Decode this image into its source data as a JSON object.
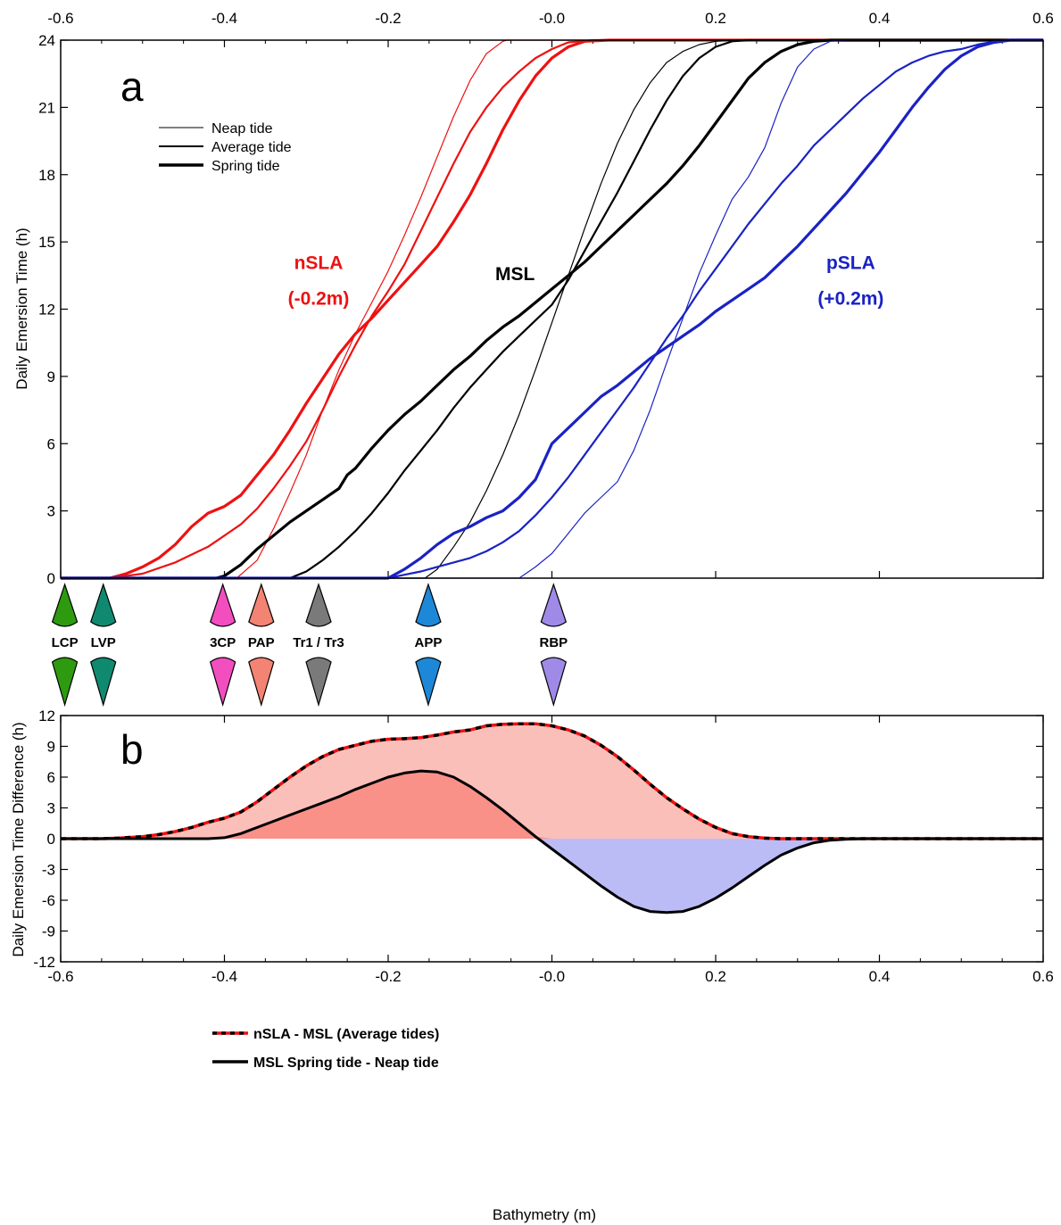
{
  "colors": {
    "nSLA": "#ee1111",
    "MSL": "#000000",
    "pSLA": "#1a22c4",
    "fill_pos_light": "#fbbfb9",
    "fill_pos_dark": "#f99189",
    "fill_neg": "#bbbcf6"
  },
  "chart_data": [
    {
      "id": "a",
      "type": "line",
      "panel_label": "a",
      "ylabel": "Daily Emersion Time (h)",
      "xlabel": "",
      "xlim": [
        -0.6,
        0.6
      ],
      "ylim": [
        0,
        24
      ],
      "x_ticks": [
        "-0.6",
        "-0.4",
        "-0.2",
        "-0.0",
        "0.2",
        "0.4",
        "0.6"
      ],
      "y_ticks": [
        "0",
        "3",
        "6",
        "9",
        "12",
        "15",
        "18",
        "21",
        "24"
      ],
      "legend": [
        "Neap tide",
        "Average tide",
        "Spring tide"
      ],
      "annotations": [
        {
          "text": "nSLA",
          "color": "#ee1111",
          "x": -0.285,
          "y": 13.8
        },
        {
          "text": "(-0.2m)",
          "color": "#ee1111",
          "x": -0.285,
          "y": 12.2
        },
        {
          "text": "MSL",
          "color": "#000000",
          "x": -0.045,
          "y": 13.3
        },
        {
          "text": "pSLA",
          "color": "#1a22c4",
          "x": 0.365,
          "y": 13.8
        },
        {
          "text": "(+0.2m)",
          "color": "#1a22c4",
          "x": 0.365,
          "y": 12.2
        }
      ],
      "series": [
        {
          "group": "nSLA",
          "tide": "Neap",
          "color": "#ee1111",
          "width": 1.2,
          "x": [
            -0.6,
            -0.385,
            -0.36,
            -0.34,
            -0.32,
            -0.3,
            -0.28,
            -0.26,
            -0.24,
            -0.22,
            -0.2,
            -0.18,
            -0.16,
            -0.14,
            -0.12,
            -0.1,
            -0.08,
            -0.06,
            -0.055,
            0.6
          ],
          "y": [
            0,
            0,
            0.8,
            2.2,
            3.8,
            5.5,
            7.5,
            9.3,
            10.9,
            12.3,
            13.7,
            15.3,
            17.0,
            18.8,
            20.6,
            22.2,
            23.4,
            23.95,
            24,
            24
          ]
        },
        {
          "group": "nSLA",
          "tide": "Average",
          "color": "#ee1111",
          "width": 2.2,
          "x": [
            -0.6,
            -0.54,
            -0.5,
            -0.46,
            -0.42,
            -0.4,
            -0.38,
            -0.36,
            -0.34,
            -0.32,
            -0.3,
            -0.28,
            -0.26,
            -0.24,
            -0.22,
            -0.2,
            -0.18,
            -0.16,
            -0.14,
            -0.12,
            -0.1,
            -0.08,
            -0.06,
            -0.04,
            -0.02,
            0.0,
            0.02,
            0.05,
            0.6
          ],
          "y": [
            0,
            0,
            0.2,
            0.7,
            1.4,
            1.9,
            2.4,
            3.1,
            4.0,
            5.0,
            6.1,
            7.5,
            9.0,
            10.4,
            11.7,
            12.8,
            14.0,
            15.5,
            17.0,
            18.5,
            19.9,
            21.0,
            21.9,
            22.6,
            23.2,
            23.6,
            23.9,
            24,
            24
          ]
        },
        {
          "group": "nSLA",
          "tide": "Spring",
          "color": "#ee1111",
          "width": 3.2,
          "x": [
            -0.6,
            -0.54,
            -0.52,
            -0.5,
            -0.48,
            -0.46,
            -0.44,
            -0.42,
            -0.4,
            -0.38,
            -0.36,
            -0.34,
            -0.32,
            -0.3,
            -0.28,
            -0.26,
            -0.24,
            -0.22,
            -0.2,
            -0.18,
            -0.16,
            -0.14,
            -0.12,
            -0.1,
            -0.08,
            -0.06,
            -0.04,
            -0.02,
            0.0,
            0.02,
            0.04,
            0.07,
            0.6
          ],
          "y": [
            0,
            0,
            0.2,
            0.5,
            0.9,
            1.5,
            2.3,
            2.9,
            3.2,
            3.7,
            4.6,
            5.5,
            6.6,
            7.8,
            8.9,
            10.0,
            10.9,
            11.6,
            12.4,
            13.2,
            14.0,
            14.8,
            15.9,
            17.1,
            18.5,
            20.0,
            21.3,
            22.4,
            23.2,
            23.7,
            23.95,
            24,
            24
          ]
        },
        {
          "group": "MSL",
          "tide": "Neap",
          "color": "#000000",
          "width": 1.2,
          "x": [
            -0.6,
            -0.155,
            -0.14,
            -0.12,
            -0.1,
            -0.08,
            -0.06,
            -0.04,
            -0.02,
            0.0,
            0.02,
            0.04,
            0.06,
            0.08,
            0.1,
            0.12,
            0.14,
            0.16,
            0.18,
            0.2,
            0.22,
            0.25,
            0.6
          ],
          "y": [
            0,
            0,
            0.4,
            1.4,
            2.5,
            3.9,
            5.5,
            7.3,
            9.3,
            11.4,
            13.5,
            15.6,
            17.6,
            19.4,
            20.9,
            22.1,
            23.0,
            23.5,
            23.8,
            23.95,
            24,
            24,
            24
          ]
        },
        {
          "group": "MSL",
          "tide": "Average",
          "color": "#000000",
          "width": 2.2,
          "x": [
            -0.6,
            -0.32,
            -0.3,
            -0.28,
            -0.26,
            -0.24,
            -0.22,
            -0.2,
            -0.18,
            -0.16,
            -0.14,
            -0.12,
            -0.1,
            -0.08,
            -0.06,
            -0.04,
            -0.02,
            0.0,
            0.02,
            0.04,
            0.06,
            0.08,
            0.1,
            0.12,
            0.14,
            0.16,
            0.18,
            0.2,
            0.22,
            0.24,
            0.26,
            0.28,
            0.6
          ],
          "y": [
            0,
            0,
            0.3,
            0.8,
            1.4,
            2.1,
            2.9,
            3.8,
            4.8,
            5.7,
            6.6,
            7.6,
            8.5,
            9.3,
            10.1,
            10.8,
            11.5,
            12.2,
            13.3,
            14.6,
            15.9,
            17.2,
            18.6,
            20.0,
            21.3,
            22.4,
            23.2,
            23.7,
            23.95,
            24,
            24,
            24,
            24
          ]
        },
        {
          "group": "MSL",
          "tide": "Spring",
          "color": "#000000",
          "width": 3.2,
          "x": [
            -0.6,
            -0.41,
            -0.4,
            -0.38,
            -0.36,
            -0.34,
            -0.32,
            -0.3,
            -0.28,
            -0.26,
            -0.25,
            -0.24,
            -0.22,
            -0.2,
            -0.18,
            -0.16,
            -0.14,
            -0.12,
            -0.1,
            -0.08,
            -0.06,
            -0.04,
            -0.02,
            0.0,
            0.02,
            0.04,
            0.06,
            0.08,
            0.1,
            0.12,
            0.14,
            0.16,
            0.18,
            0.2,
            0.22,
            0.24,
            0.26,
            0.28,
            0.3,
            0.32,
            0.34,
            0.36,
            0.6
          ],
          "y": [
            0,
            0,
            0.1,
            0.6,
            1.3,
            1.9,
            2.5,
            3.0,
            3.5,
            4.0,
            4.6,
            4.9,
            5.8,
            6.6,
            7.3,
            7.9,
            8.6,
            9.3,
            9.9,
            10.6,
            11.2,
            11.7,
            12.3,
            12.9,
            13.5,
            14.1,
            14.8,
            15.5,
            16.2,
            16.9,
            17.6,
            18.4,
            19.3,
            20.3,
            21.3,
            22.3,
            23.0,
            23.5,
            23.8,
            23.95,
            24,
            24,
            24
          ]
        },
        {
          "group": "pSLA",
          "tide": "Neap",
          "color": "#1a22c4",
          "width": 1.2,
          "x": [
            -0.6,
            -0.04,
            -0.02,
            0.0,
            0.02,
            0.04,
            0.06,
            0.08,
            0.1,
            0.12,
            0.14,
            0.16,
            0.18,
            0.2,
            0.22,
            0.24,
            0.26,
            0.28,
            0.3,
            0.32,
            0.34,
            0.36,
            0.6
          ],
          "y": [
            0,
            0,
            0.5,
            1.1,
            2.0,
            2.9,
            3.6,
            4.3,
            5.7,
            7.5,
            9.6,
            11.6,
            13.6,
            15.3,
            16.9,
            17.9,
            19.2,
            21.2,
            22.8,
            23.6,
            23.95,
            24,
            24
          ]
        },
        {
          "group": "pSLA",
          "tide": "Average",
          "color": "#1a22c4",
          "width": 2.2,
          "x": [
            -0.6,
            -0.2,
            -0.18,
            -0.16,
            -0.14,
            -0.12,
            -0.1,
            -0.08,
            -0.06,
            -0.04,
            -0.02,
            0.0,
            0.02,
            0.04,
            0.06,
            0.08,
            0.1,
            0.12,
            0.14,
            0.16,
            0.18,
            0.2,
            0.22,
            0.24,
            0.26,
            0.28,
            0.3,
            0.32,
            0.34,
            0.36,
            0.38,
            0.4,
            0.42,
            0.44,
            0.46,
            0.48,
            0.5,
            0.52,
            0.55,
            0.6
          ],
          "y": [
            0,
            0,
            0.15,
            0.3,
            0.5,
            0.7,
            0.9,
            1.2,
            1.6,
            2.1,
            2.8,
            3.6,
            4.5,
            5.5,
            6.5,
            7.5,
            8.5,
            9.6,
            10.7,
            11.7,
            12.8,
            13.8,
            14.8,
            15.8,
            16.7,
            17.6,
            18.4,
            19.3,
            20.0,
            20.7,
            21.4,
            22.0,
            22.6,
            23.0,
            23.3,
            23.5,
            23.6,
            23.8,
            24,
            24
          ]
        },
        {
          "group": "pSLA",
          "tide": "Spring",
          "color": "#1a22c4",
          "width": 3.2,
          "x": [
            -0.6,
            -0.2,
            -0.18,
            -0.16,
            -0.14,
            -0.12,
            -0.1,
            -0.08,
            -0.06,
            -0.04,
            -0.02,
            0.0,
            0.02,
            0.04,
            0.06,
            0.08,
            0.1,
            0.12,
            0.14,
            0.16,
            0.18,
            0.2,
            0.22,
            0.24,
            0.26,
            0.28,
            0.3,
            0.32,
            0.34,
            0.36,
            0.38,
            0.4,
            0.42,
            0.44,
            0.46,
            0.48,
            0.5,
            0.52,
            0.54,
            0.56,
            0.6
          ],
          "y": [
            0,
            0,
            0.4,
            0.9,
            1.5,
            2.0,
            2.3,
            2.7,
            3.0,
            3.6,
            4.4,
            6.0,
            6.7,
            7.4,
            8.1,
            8.6,
            9.2,
            9.8,
            10.3,
            10.8,
            11.3,
            11.9,
            12.4,
            12.9,
            13.4,
            14.1,
            14.8,
            15.6,
            16.4,
            17.2,
            18.1,
            19.0,
            20.0,
            21.0,
            21.9,
            22.7,
            23.3,
            23.7,
            23.9,
            24,
            24
          ]
        }
      ]
    },
    {
      "id": "markers",
      "type": "scatter",
      "description_labels": [
        "LCP",
        "LVP",
        "3CP",
        "PAP",
        "Tr1 / Tr3",
        "APP",
        "RBP"
      ],
      "points": [
        {
          "label": "LCP",
          "x": -0.595,
          "color": "#2e9a10"
        },
        {
          "label": "LVP",
          "x": -0.548,
          "color": "#0f8a70"
        },
        {
          "label": "3CP",
          "x": -0.402,
          "color": "#f24ec0"
        },
        {
          "label": "PAP",
          "x": -0.355,
          "color": "#f38372"
        },
        {
          "label": "Tr1 / Tr3",
          "x": -0.285,
          "color": "#7a7a7a"
        },
        {
          "label": "APP",
          "x": -0.151,
          "color": "#1e88d8"
        },
        {
          "label": "RBP",
          "x": 0.002,
          "color": "#a08ae8"
        }
      ]
    },
    {
      "id": "b",
      "type": "area",
      "panel_label": "b",
      "ylabel": "Daily Emersion Time Difference (h)",
      "xlabel": "Bathymetry (m)",
      "xlim": [
        -0.6,
        0.6
      ],
      "ylim": [
        -12,
        12
      ],
      "x_ticks": [
        "-0.6",
        "-0.4",
        "-0.2",
        "-0.0",
        "0.2",
        "0.4",
        "0.6"
      ],
      "y_ticks": [
        "-12",
        "-9",
        "-6",
        "-3",
        "0",
        "3",
        "6",
        "9",
        "12"
      ],
      "legend": [
        "nSLA - MSL (Average tides)",
        "MSL Spring tide - Neap tide"
      ],
      "series": [
        {
          "name": "nSLA - MSL (Average tides)",
          "x": [
            -0.6,
            -0.55,
            -0.53,
            -0.5,
            -0.48,
            -0.46,
            -0.44,
            -0.42,
            -0.4,
            -0.38,
            -0.36,
            -0.34,
            -0.32,
            -0.3,
            -0.28,
            -0.26,
            -0.24,
            -0.22,
            -0.2,
            -0.18,
            -0.16,
            -0.14,
            -0.12,
            -0.1,
            -0.08,
            -0.06,
            -0.04,
            -0.02,
            0.0,
            0.02,
            0.04,
            0.06,
            0.08,
            0.1,
            0.12,
            0.14,
            0.16,
            0.18,
            0.2,
            0.22,
            0.24,
            0.26,
            0.28,
            0.3,
            0.32,
            0.35,
            0.4,
            0.6
          ],
          "y": [
            0,
            0,
            0.05,
            0.2,
            0.4,
            0.7,
            1.1,
            1.6,
            2.0,
            2.6,
            3.6,
            4.8,
            6.0,
            7.1,
            8.0,
            8.7,
            9.1,
            9.5,
            9.7,
            9.75,
            9.85,
            10.1,
            10.4,
            10.6,
            11.0,
            11.15,
            11.2,
            11.2,
            11.0,
            10.6,
            10.0,
            9.1,
            8.0,
            6.7,
            5.3,
            4.0,
            2.9,
            1.9,
            1.1,
            0.5,
            0.2,
            0.05,
            0,
            0,
            0,
            0,
            0,
            0
          ]
        },
        {
          "name": "MSL Spring tide - Neap tide",
          "x": [
            -0.6,
            -0.42,
            -0.4,
            -0.38,
            -0.36,
            -0.34,
            -0.32,
            -0.3,
            -0.28,
            -0.26,
            -0.24,
            -0.22,
            -0.2,
            -0.18,
            -0.16,
            -0.14,
            -0.12,
            -0.1,
            -0.08,
            -0.06,
            -0.04,
            -0.02,
            0.0,
            0.02,
            0.04,
            0.06,
            0.08,
            0.1,
            0.12,
            0.14,
            0.16,
            0.18,
            0.2,
            0.22,
            0.24,
            0.26,
            0.28,
            0.3,
            0.32,
            0.34,
            0.36,
            0.38,
            0.4,
            0.6
          ],
          "y": [
            0,
            0,
            0.1,
            0.5,
            1.1,
            1.7,
            2.3,
            2.9,
            3.5,
            4.1,
            4.8,
            5.4,
            6.0,
            6.4,
            6.6,
            6.5,
            6.0,
            5.1,
            4.0,
            2.8,
            1.5,
            0.2,
            -1.0,
            -2.2,
            -3.4,
            -4.6,
            -5.7,
            -6.6,
            -7.1,
            -7.2,
            -7.1,
            -6.6,
            -5.8,
            -4.8,
            -3.7,
            -2.6,
            -1.6,
            -0.9,
            -0.4,
            -0.15,
            -0.05,
            0,
            0,
            0
          ]
        }
      ]
    }
  ]
}
